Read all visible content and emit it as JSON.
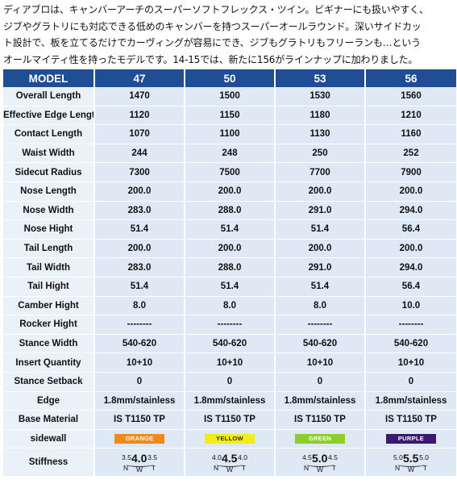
{
  "intro": [
    "ディアブロは、キャンバーアーチのスーパーソフトフレックス・ツイン。ビギナーにも扱いやすく、",
    "ジブやグラトリにも対応できる低めのキャンバーを持つスーパーオールラウンド。深いサイドカッ",
    "ト設計で、板を立てるだけでカーヴィングが容易にでき、ジブもグラトリもフリーランも…という",
    "オールマイティ性を持ったモデルです。14-15では、新たに156がラインナップに加わりました。"
  ],
  "table": {
    "header": [
      "MODEL",
      "47",
      "50",
      "53",
      "56"
    ],
    "rows": [
      {
        "label": "Overall Length",
        "values": [
          "1470",
          "1500",
          "1530",
          "1560"
        ]
      },
      {
        "label": "Effective Edge Length",
        "values": [
          "1120",
          "1150",
          "1180",
          "1210"
        ]
      },
      {
        "label": "Contact Length",
        "values": [
          "1070",
          "1100",
          "1130",
          "1160"
        ]
      },
      {
        "label": "Waist Width",
        "values": [
          "244",
          "248",
          "250",
          "252"
        ]
      },
      {
        "label": "Sidecut Radius",
        "values": [
          "7300",
          "7500",
          "7700",
          "7900"
        ]
      },
      {
        "label": "Nose Length",
        "values": [
          "200.0",
          "200.0",
          "200.0",
          "200.0"
        ]
      },
      {
        "label": "Nose Width",
        "values": [
          "283.0",
          "288.0",
          "291.0",
          "294.0"
        ]
      },
      {
        "label": "Nose Hight",
        "values": [
          "51.4",
          "51.4",
          "51.4",
          "56.4"
        ]
      },
      {
        "label": "Tail Length",
        "values": [
          "200.0",
          "200.0",
          "200.0",
          "200.0"
        ]
      },
      {
        "label": "Tail Width",
        "values": [
          "283.0",
          "288.0",
          "291.0",
          "294.0"
        ]
      },
      {
        "label": "Tail Hight",
        "values": [
          "51.4",
          "51.4",
          "51.4",
          "56.4"
        ]
      },
      {
        "label": "Camber Hight",
        "values": [
          "8.0",
          "8.0",
          "8.0",
          "10.0"
        ]
      },
      {
        "label": "Rocker Hight",
        "values": [
          "--------",
          "--------",
          "--------",
          "--------"
        ]
      },
      {
        "label": "Stance Width",
        "values": [
          "540-620",
          "540-620",
          "540-620",
          "540-620"
        ]
      },
      {
        "label": "Insert Quantity",
        "values": [
          "10+10",
          "10+10",
          "10+10",
          "10+10"
        ]
      },
      {
        "label": "Stance Setback",
        "values": [
          "0",
          "0",
          "0",
          "0"
        ]
      },
      {
        "label": "Edge",
        "values": [
          "1.8mm/stainless",
          "1.8mm/stainless",
          "1.8mm/stainless",
          "1.8mm/stainless"
        ]
      },
      {
        "label": "Base Material",
        "values": [
          "IS T1150 TP",
          "IS T1150 TP",
          "IS T1150 TP",
          "IS T1150 TP"
        ]
      }
    ],
    "sidewall": {
      "label": "sidewall",
      "items": [
        {
          "text": "ORANGE",
          "bg": "#f08a1c",
          "fg": "#ffffff"
        },
        {
          "text": "YELLOW",
          "bg": "#f4ec1a",
          "fg": "#333333"
        },
        {
          "text": "GREEN",
          "bg": "#8ccf2a",
          "fg": "#ffffff"
        },
        {
          "text": "PURPLE",
          "bg": "#3b1a6e",
          "fg": "#ffffff"
        }
      ]
    },
    "stiffness": {
      "label": "Stiffness",
      "letters": {
        "n": "N",
        "w": "W",
        "t": "T"
      },
      "items": [
        {
          "n": "3.5",
          "w": "4.0",
          "t": "3.5"
        },
        {
          "n": "4.0",
          "w": "4.5",
          "t": "4.0"
        },
        {
          "n": "4.5",
          "w": "5.0",
          "t": "4.5"
        },
        {
          "n": "5.0",
          "w": "5.5",
          "t": "5.0"
        }
      ]
    }
  },
  "colors": {
    "header_bg": "#1f4e94",
    "cell_bg": "#dfe9f5"
  }
}
